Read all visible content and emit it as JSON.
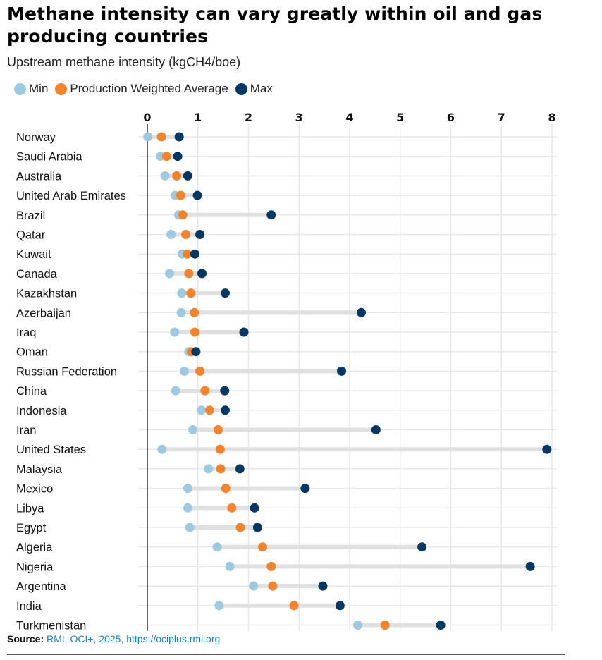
{
  "title": "Methane intensity can vary greatly within oil and gas producing countries",
  "subtitle": "Upstream methane intensity (kgCH4/boe)",
  "legend": [
    {
      "label": "Min",
      "color": "#9ecae1"
    },
    {
      "label": "Production Weighted Average",
      "color": "#f5832a"
    },
    {
      "label": "Max",
      "color": "#003865"
    }
  ],
  "source": {
    "label": "Source:",
    "text": "RMI, OCI+, 2025, https://ociplus.rmi.org"
  },
  "colors": {
    "min": "#9ecae1",
    "avg": "#f5832a",
    "max": "#003865",
    "range": "#e0e0e0",
    "grid": "#e8e8e8",
    "axis": "#333333"
  },
  "chart_data": {
    "type": "dumbbell",
    "title": "Methane intensity can vary greatly within oil and gas producing countries",
    "xlabel": "Upstream methane intensity (kgCH4/boe)",
    "ylabel": "",
    "xlim": [
      0,
      8
    ],
    "xticks": [
      0,
      1,
      2,
      3,
      4,
      5,
      6,
      7,
      8
    ],
    "grid": true,
    "legend_position": "top-left",
    "series_names": [
      "Min",
      "Production Weighted Average",
      "Max"
    ],
    "categories": [
      "Norway",
      "Saudi Arabia",
      "Australia",
      "United Arab Emirates",
      "Brazil",
      "Qatar",
      "Kuwait",
      "Canada",
      "Kazakhstan",
      "Azerbaijan",
      "Iraq",
      "Oman",
      "Russian Federation",
      "China",
      "Indonesia",
      "Iran",
      "United States",
      "Malaysia",
      "Mexico",
      "Libya",
      "Egypt",
      "Algeria",
      "Nigeria",
      "Argentina",
      "India",
      "Turkmenistan"
    ],
    "min": [
      0.01,
      0.26,
      0.35,
      0.55,
      0.62,
      0.47,
      0.69,
      0.44,
      0.68,
      0.67,
      0.54,
      0.82,
      0.73,
      0.56,
      1.07,
      0.9,
      0.29,
      1.21,
      0.8,
      0.8,
      0.84,
      1.38,
      1.63,
      2.1,
      1.42,
      4.16
    ],
    "avg": [
      0.28,
      0.38,
      0.58,
      0.66,
      0.7,
      0.76,
      0.79,
      0.82,
      0.86,
      0.93,
      0.94,
      0.87,
      1.04,
      1.14,
      1.23,
      1.4,
      1.44,
      1.45,
      1.55,
      1.67,
      1.84,
      2.28,
      2.45,
      2.48,
      2.9,
      4.7
    ],
    "max": [
      0.63,
      0.6,
      0.8,
      0.99,
      2.45,
      1.04,
      0.94,
      1.08,
      1.54,
      4.23,
      1.91,
      0.96,
      3.84,
      1.53,
      1.54,
      4.52,
      7.9,
      1.83,
      3.12,
      2.12,
      2.18,
      5.43,
      7.57,
      3.47,
      3.81,
      5.8
    ]
  }
}
